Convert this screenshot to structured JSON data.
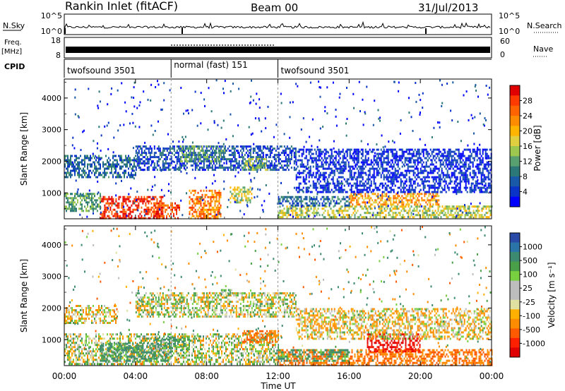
{
  "header": {
    "station": "Rankin Inlet (fitACF)",
    "beam": "Beam 00",
    "date": "31/Jul/2013"
  },
  "noise_panel": {
    "left_label": "N.Sky",
    "right_label": "N.Search",
    "left_ticks": [
      "10^5",
      "10^0"
    ],
    "right_ticks": [
      "10^5",
      "10^0"
    ]
  },
  "freq_panel": {
    "left_label_1": "Freq.",
    "left_label_2": "[MHz]",
    "left_ticks": [
      "18",
      "8"
    ],
    "right_label": "Nave",
    "right_ticks": [
      "60",
      "0"
    ]
  },
  "cpid_panel": {
    "label": "CPID",
    "segments": [
      {
        "label": "twofsound 3501",
        "start_hour": 0,
        "end_hour": 6
      },
      {
        "label": "normal (fast) 151",
        "start_hour": 6,
        "end_hour": 12
      },
      {
        "label": "twofsound 3501",
        "start_hour": 12,
        "end_hour": 24
      }
    ]
  },
  "x_axis": {
    "label": "Time UT",
    "ticks": [
      "00:00",
      "04:00",
      "08:00",
      "12:00",
      "16:00",
      "20:00",
      "00:00"
    ],
    "range_hours": [
      0,
      24
    ]
  },
  "power_panel": {
    "ylabel": "Slant Range [km]",
    "yticks": [
      "1000",
      "2000",
      "3000",
      "4000"
    ],
    "colorbar_label": "Power [dB]",
    "colorbar_ticks": [
      "28",
      "24",
      "20",
      "16",
      "12",
      "8",
      "4"
    ],
    "colorbar_colors": [
      "#e00000",
      "#ff3a00",
      "#ff6400",
      "#ff8c00",
      "#ffb400",
      "#e0d040",
      "#9cc850",
      "#58a070",
      "#2c7878",
      "#1a58a8",
      "#0a34c8",
      "#0000ff"
    ]
  },
  "velocity_panel": {
    "ylabel": "Slant Range [km]",
    "yticks": [
      "1000",
      "2000",
      "3000",
      "4000"
    ],
    "colorbar_label": "Velocity [m s⁻¹]",
    "colorbar_ticks": [
      "1000",
      "500",
      "100",
      "25",
      "-25",
      "-100",
      "-500",
      "-1000"
    ],
    "colorbar_colors": [
      "#2a4aa8",
      "#2a74a8",
      "#3c8a70",
      "#4aa048",
      "#78d040",
      "#bdbdbd",
      "#bdbdbd",
      "#e0e0a0",
      "#ffb000",
      "#ff8c00",
      "#ff5a00",
      "#ff2000",
      "#e00000"
    ]
  },
  "chart_data": [
    {
      "type": "heatmap",
      "title": "Power [dB]",
      "xlabel": "Time UT",
      "ylabel": "Slant Range [km]",
      "xlim": [
        0,
        24
      ],
      "ylim": [
        180,
        4600
      ],
      "clim": [
        0,
        30
      ],
      "regions": [
        {
          "t0": 2.0,
          "t1": 5.5,
          "r0": 200,
          "r1": 900,
          "value": 28
        },
        {
          "t0": 5.0,
          "t1": 6.5,
          "r0": 200,
          "r1": 700,
          "value": 26
        },
        {
          "t0": 7.0,
          "t1": 8.8,
          "r0": 200,
          "r1": 1100,
          "value": 24
        },
        {
          "t0": 9.3,
          "t1": 10.5,
          "r0": 700,
          "r1": 1200,
          "value": 18
        },
        {
          "t0": 0.0,
          "t1": 2.0,
          "r0": 400,
          "r1": 1000,
          "value": 14
        },
        {
          "t0": 0.0,
          "t1": 4.0,
          "r0": 1500,
          "r1": 2200,
          "value": 10
        },
        {
          "t0": 4.0,
          "t1": 13.0,
          "r0": 1700,
          "r1": 2500,
          "value": 8
        },
        {
          "t0": 6.5,
          "t1": 9.0,
          "r0": 2000,
          "r1": 2500,
          "value": 14
        },
        {
          "t0": 10.0,
          "t1": 11.5,
          "r0": 1700,
          "r1": 2100,
          "value": 16
        },
        {
          "t0": 12.0,
          "t1": 24.0,
          "r0": 200,
          "r1": 600,
          "value": 18
        },
        {
          "t0": 16.0,
          "t1": 21.0,
          "r0": 600,
          "r1": 1000,
          "value": 22
        },
        {
          "t0": 13.0,
          "t1": 24.0,
          "r0": 1000,
          "r1": 2400,
          "value": 6
        },
        {
          "t0": 12.0,
          "t1": 16.0,
          "r0": 600,
          "r1": 900,
          "value": 10
        }
      ]
    },
    {
      "type": "heatmap",
      "title": "Velocity [m s⁻¹]",
      "xlabel": "Time UT",
      "ylabel": "Slant Range [km]",
      "xlim": [
        0,
        24
      ],
      "ylim": [
        180,
        4600
      ],
      "clim": [
        -1000,
        1000
      ],
      "regions": [
        {
          "t0": 0.0,
          "t1": 12.0,
          "r0": 200,
          "r1": 1200,
          "value": 10
        },
        {
          "t0": 2.0,
          "t1": 6.0,
          "r0": 300,
          "r1": 900,
          "value": 200
        },
        {
          "t0": 5.0,
          "t1": 7.0,
          "r0": 600,
          "r1": 1100,
          "value": 150
        },
        {
          "t0": 4.0,
          "t1": 13.0,
          "r0": 1700,
          "r1": 2500,
          "value": 5
        },
        {
          "t0": 0.0,
          "t1": 3.0,
          "r0": 1500,
          "r1": 2100,
          "value": -50
        },
        {
          "t0": 10.0,
          "t1": 12.0,
          "r0": 900,
          "r1": 1300,
          "value": -300
        },
        {
          "t0": 12.0,
          "t1": 24.0,
          "r0": 200,
          "r1": 700,
          "value": -300
        },
        {
          "t0": 17.0,
          "t1": 20.0,
          "r0": 600,
          "r1": 1200,
          "value": -800
        },
        {
          "t0": 12.0,
          "t1": 16.0,
          "r0": 300,
          "r1": 700,
          "value": 150
        },
        {
          "t0": 13.0,
          "t1": 24.0,
          "r0": 1000,
          "r1": 2000,
          "value": -60
        },
        {
          "t0": 8.8,
          "t1": 9.4,
          "r0": 2450,
          "r1": 2600,
          "value": 100
        }
      ]
    }
  ]
}
